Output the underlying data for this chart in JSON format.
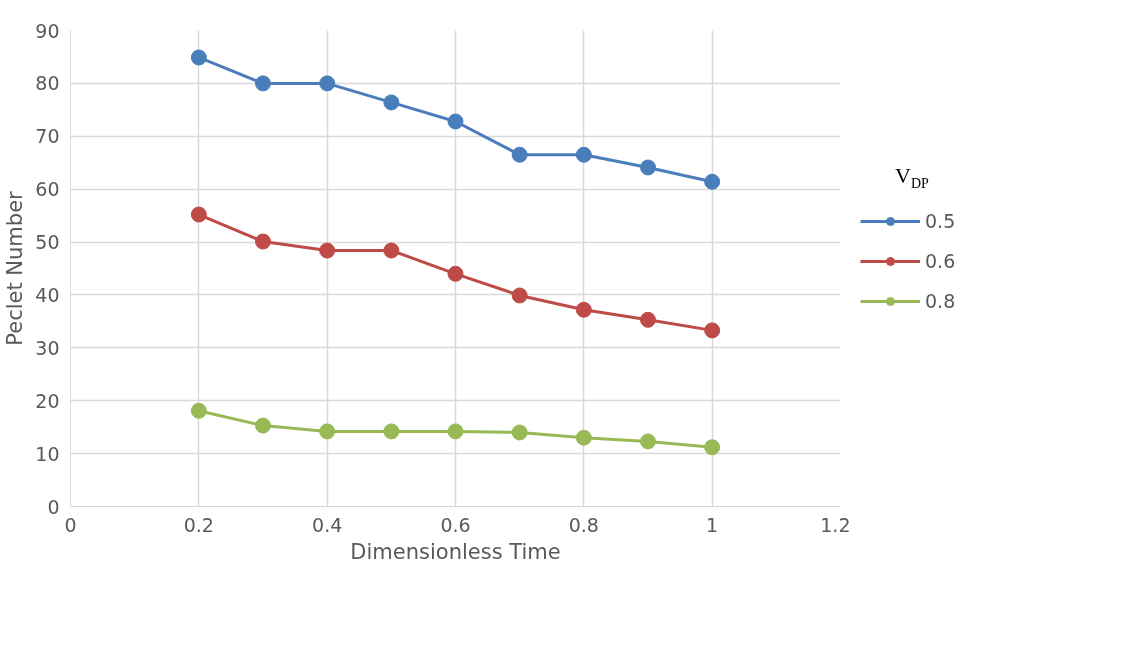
{
  "chart_data": {
    "type": "line",
    "xlabel": "Dimensionless Time",
    "ylabel": "Peclet Number",
    "legend_title": "V$_{DP}$",
    "x": [
      0.2,
      0.3,
      0.4,
      0.5,
      0.6,
      0.7,
      0.8,
      0.9,
      1.0
    ],
    "series": [
      {
        "name": "0.5",
        "color": "#4a7ebb",
        "values": [
          84.9,
          80.0,
          80.0,
          76.4,
          72.8,
          66.5,
          66.5,
          64.1,
          61.4
        ]
      },
      {
        "name": "0.6",
        "color": "#be4b48",
        "values": [
          55.2,
          50.1,
          48.4,
          48.4,
          44.0,
          39.9,
          37.2,
          35.3,
          33.3
        ]
      },
      {
        "name": "0.8",
        "color": "#98b954",
        "values": [
          18.1,
          15.3,
          14.2,
          14.2,
          14.2,
          14.0,
          13.0,
          12.3,
          11.2
        ]
      }
    ],
    "xlim": [
      0,
      1.2
    ],
    "xticks": [
      0,
      0.2,
      0.4,
      0.6,
      0.8,
      1,
      1.2
    ],
    "ylim": [
      0,
      90
    ],
    "yticks": [
      0,
      10,
      20,
      30,
      40,
      50,
      60,
      70,
      80,
      90
    ],
    "grid": true,
    "legend": "right",
    "marker": "circle",
    "line_style": "solid"
  }
}
